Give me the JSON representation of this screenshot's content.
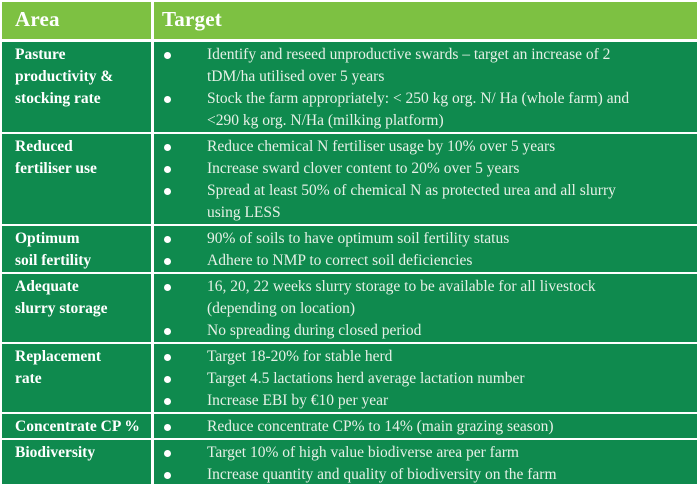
{
  "theme": {
    "header_bg": "#7dc142",
    "body_bg": "#0f8a4e",
    "border_color": "#ffffff",
    "header_text_color": "#ffffff",
    "area_text_color": "#ffffff",
    "target_text_color": "#e6f0e6"
  },
  "table": {
    "header": {
      "area": "Area",
      "target": "Target"
    },
    "rows": [
      {
        "area": "Pasture\nproductivity &\nstocking rate",
        "targets": [
          "Identify and reseed unproductive swards – target an increase of 2\ntDM/ha utilised over 5 years",
          "Stock the farm appropriately: < 250 kg org. N/ Ha (whole farm) and\n<290 kg org. N/Ha (milking platform)"
        ]
      },
      {
        "area": "Reduced\nfertiliser use",
        "targets": [
          "Reduce chemical N fertiliser usage by 10% over 5 years",
          "Increase sward clover content to 20% over 5 years",
          "Spread at least 50% of chemical N as protected urea and all slurry\nusing LESS"
        ]
      },
      {
        "area": "Optimum\nsoil fertility",
        "targets": [
          "90% of soils to have optimum soil fertility status",
          "Adhere to NMP to correct soil deficiencies"
        ]
      },
      {
        "area": "Adequate\nslurry storage",
        "targets": [
          "16, 20, 22 weeks slurry storage to be available for all livestock\n(depending on location)",
          "No spreading during closed period"
        ]
      },
      {
        "area": "Replacement\nrate",
        "targets": [
          "Target 18-20% for stable herd",
          "Target 4.5 lactations herd average lactation number",
          "Increase EBI by €10 per year"
        ]
      },
      {
        "area": "Concentrate CP %",
        "targets": [
          "Reduce concentrate CP% to 14% (main grazing season)"
        ]
      },
      {
        "area": "Biodiversity",
        "targets": [
          "Target 10% of high value biodiverse area per farm",
          "Increase quantity and quality of biodiversity on the farm"
        ]
      }
    ]
  }
}
